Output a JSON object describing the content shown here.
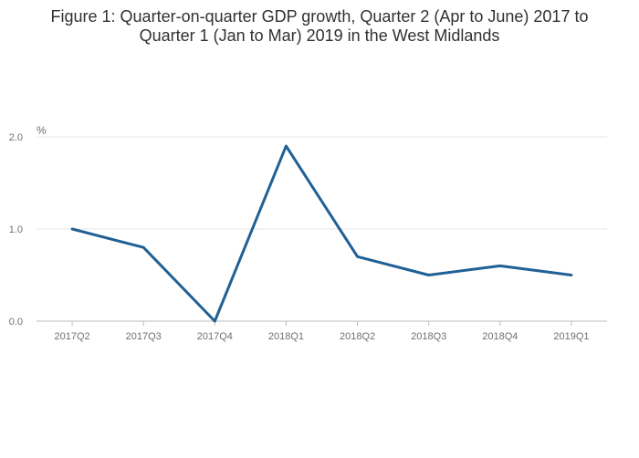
{
  "chart_data": {
    "type": "line",
    "title_lines": [
      "Figure 1: Quarter-on-quarter GDP growth, Quarter 2 (Apr to June) 2017 to",
      "Quarter 1 (Jan to Mar) 2019 in the West Midlands"
    ],
    "ylabel": "%",
    "xlabel": "",
    "categories": [
      "2017Q2",
      "2017Q3",
      "2017Q4",
      "2018Q1",
      "2018Q2",
      "2018Q3",
      "2018Q4",
      "2019Q1"
    ],
    "series": [
      {
        "values": [
          1.0,
          0.8,
          0.0,
          1.9,
          0.7,
          0.5,
          0.6,
          0.5
        ]
      }
    ],
    "ylim": [
      0,
      2.0
    ],
    "yticks": [
      "0.0",
      "1.0",
      "2.0"
    ],
    "grid": true,
    "legend": "none",
    "colors": {
      "line": "#206095",
      "grid": "#e6e6e6",
      "axis": "#bebebe",
      "text": "#707071"
    }
  }
}
